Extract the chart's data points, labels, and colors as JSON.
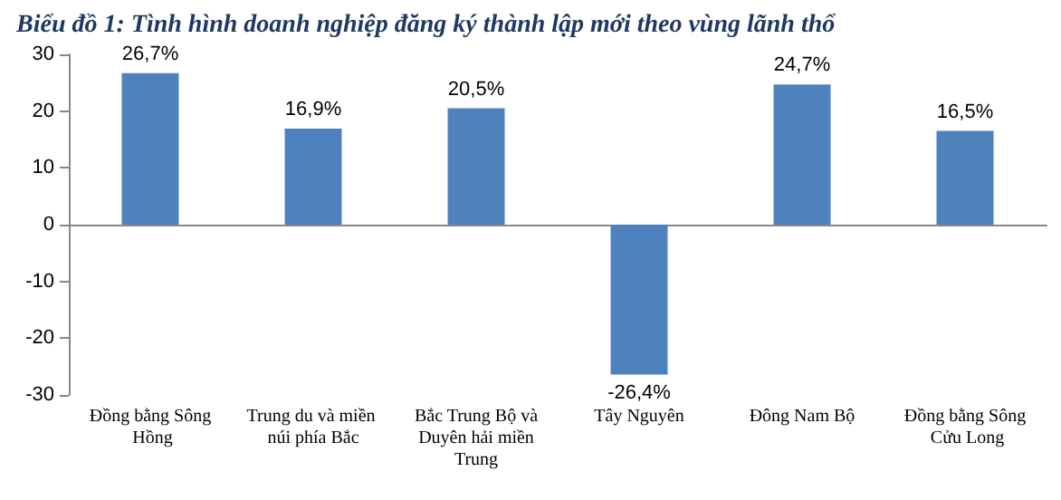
{
  "chart_data": {
    "type": "bar",
    "title": "Biểu đồ 1: Tình hình doanh nghiệp đăng ký thành lập mới theo vùng lãnh thổ",
    "categories": [
      "Đồng bằng Sông Hồng",
      "Trung du và miền núi phía Bắc",
      "Bắc Trung Bộ và Duyên hải miền Trung",
      "Tây Nguyên",
      "Đông Nam Bộ",
      "Đồng bằng Sông Cửu Long"
    ],
    "values": [
      26.7,
      16.9,
      20.5,
      -26.4,
      24.7,
      16.5
    ],
    "value_labels": [
      "26,7%",
      "16,9%",
      "20,5%",
      "-26,4%",
      "24,7%",
      "16,5%"
    ],
    "color": "#4f81bd",
    "ylim": [
      -30,
      30
    ],
    "yticks": [
      -30,
      -20,
      -10,
      0,
      10,
      20,
      30
    ]
  }
}
